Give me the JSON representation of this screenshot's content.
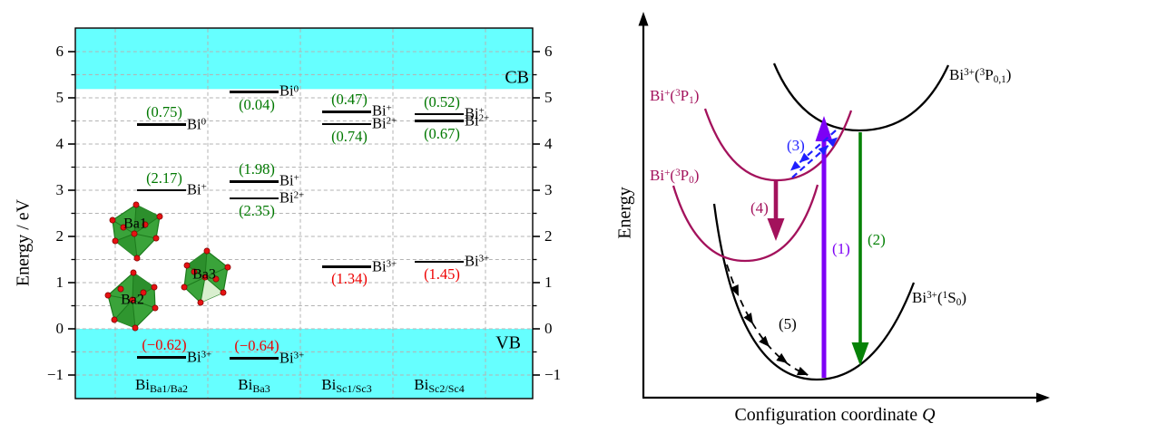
{
  "left_panel": {
    "y_axis_label": "Energy / eV",
    "tick_labels": [
      "6",
      "5",
      "4",
      "3",
      "2",
      "1",
      "0",
      "−1"
    ],
    "cb_label": "CB",
    "vb_label": "VB",
    "sites": [
      {
        "el": "Bi",
        "sub": "Ba1/Ba2"
      },
      {
        "el": "Bi",
        "sub": "Ba3"
      },
      {
        "el": "Bi",
        "sub": "Sc1/Sc3"
      },
      {
        "el": "Bi",
        "sub": "Sc2/Sc4"
      }
    ],
    "polyhedra": [
      "Ba1",
      "Ba2",
      "Ba3"
    ],
    "levels": [
      {
        "value": "(0.75)",
        "el": "Bi",
        "charge": "0"
      },
      {
        "value": "(2.17)",
        "el": "Bi",
        "charge": "+"
      },
      {
        "value": "(−0.62)",
        "el": "Bi",
        "charge": "3+"
      },
      {
        "value": "(0.04)",
        "el": "Bi",
        "charge": "0"
      },
      {
        "value": "(1.98)",
        "el": "Bi",
        "charge": "+"
      },
      {
        "value": "(2.35)",
        "el": "Bi",
        "charge": "2+"
      },
      {
        "value": "(−0.64)",
        "el": "Bi",
        "charge": "3+"
      },
      {
        "value": "(0.47)",
        "el": "Bi",
        "charge": "+"
      },
      {
        "value": "(0.74)",
        "el": "Bi",
        "charge": "2+"
      },
      {
        "value": "(1.34)",
        "el": "Bi",
        "charge": "3+"
      },
      {
        "value": "(0.52)",
        "el": "Bi",
        "charge": "+"
      },
      {
        "value": "(0.67)",
        "el": "Bi",
        "charge": "2+"
      },
      {
        "value": "(1.45)",
        "el": "Bi",
        "charge": "3+"
      }
    ]
  },
  "right_panel": {
    "y_axis_label": "Energy",
    "x_axis_label": "Configuration coordinate",
    "x_axis_symbol": "Q",
    "curve_labels": {
      "p1": {
        "el": "Bi",
        "charge": "+",
        "open": "(",
        "mult": "3",
        "term": "P",
        "sub": "1",
        "close": ")"
      },
      "p0": {
        "el": "Bi",
        "charge": "+",
        "open": "(",
        "mult": "3",
        "term": "P",
        "sub": "0",
        "close": ")"
      },
      "p01": {
        "el": "Bi",
        "charge": "3+",
        "open": "(",
        "mult": "3",
        "term": "P",
        "sub": "0,1",
        "close": ")"
      },
      "s0": {
        "el": "Bi",
        "charge": "3+",
        "open": "(",
        "mult": "1",
        "term": "S",
        "sub": "0",
        "close": ")"
      }
    },
    "arrow_labels": [
      "(1)",
      "(2)",
      "(3)",
      "(4)",
      "(5)"
    ]
  },
  "colors": {
    "band_cyan": "#66ffff",
    "value_green": "#007800",
    "value_red": "#ee0000",
    "curve_maroon": "#a3125c",
    "arrow_purple": "#7d00f5",
    "arrow_green": "#068207",
    "arrow_blue": "#1f1fff",
    "polyhedron_green": "#3aa33a",
    "vertex_red": "#e51212"
  },
  "chart_data": [
    {
      "type": "energy-level-diagram",
      "ylabel": "Energy / eV",
      "ylim": [
        -1.5,
        6.5
      ],
      "yticks": [
        -1,
        0,
        1,
        2,
        3,
        4,
        5,
        6
      ],
      "grid": true,
      "conduction_band_eV": [
        5.17,
        6.5
      ],
      "valence_band_eV": [
        -1.5,
        0.0
      ],
      "band_edge_labels": [
        "CB",
        "VB"
      ],
      "categories": [
        "Bi_Ba1/Ba2",
        "Bi_Ba3",
        "Bi_Sc1/Sc3",
        "Bi_Sc2/Sc4"
      ],
      "levels": [
        {
          "site": "Bi_Ba1/Ba2",
          "species": "Bi0",
          "energy_eV": 4.42,
          "annotation": "(0.75)",
          "annotation_color": "green"
        },
        {
          "site": "Bi_Ba1/Ba2",
          "species": "Bi+",
          "energy_eV": 3.0,
          "annotation": "(2.17)",
          "annotation_color": "green"
        },
        {
          "site": "Bi_Ba1/Ba2",
          "species": "Bi3+",
          "energy_eV": -0.62,
          "annotation": "(−0.62)",
          "annotation_color": "red"
        },
        {
          "site": "Bi_Ba3",
          "species": "Bi0",
          "energy_eV": 5.13,
          "annotation": "(0.04)",
          "annotation_color": "green"
        },
        {
          "site": "Bi_Ba3",
          "species": "Bi+",
          "energy_eV": 3.19,
          "annotation": "(1.98)",
          "annotation_color": "green"
        },
        {
          "site": "Bi_Ba3",
          "species": "Bi2+",
          "energy_eV": 2.82,
          "annotation": "(2.35)",
          "annotation_color": "green"
        },
        {
          "site": "Bi_Ba3",
          "species": "Bi3+",
          "energy_eV": -0.64,
          "annotation": "(−0.64)",
          "annotation_color": "red"
        },
        {
          "site": "Bi_Sc1/Sc3",
          "species": "Bi+",
          "energy_eV": 4.7,
          "annotation": "(0.47)",
          "annotation_color": "green"
        },
        {
          "site": "Bi_Sc1/Sc3",
          "species": "Bi2+",
          "energy_eV": 4.43,
          "annotation": "(0.74)",
          "annotation_color": "green"
        },
        {
          "site": "Bi_Sc1/Sc3",
          "species": "Bi3+",
          "energy_eV": 1.34,
          "annotation": "(1.34)",
          "annotation_color": "red"
        },
        {
          "site": "Bi_Sc2/Sc4",
          "species": "Bi+",
          "energy_eV": 4.65,
          "annotation": "(0.52)",
          "annotation_color": "green"
        },
        {
          "site": "Bi_Sc2/Sc4",
          "species": "Bi2+",
          "energy_eV": 4.5,
          "annotation": "(0.67)",
          "annotation_color": "green"
        },
        {
          "site": "Bi_Sc2/Sc4",
          "species": "Bi3+",
          "energy_eV": 1.45,
          "annotation": "(1.45)",
          "annotation_color": "red"
        }
      ],
      "inset_polyhedra": [
        "Ba1",
        "Ba2",
        "Ba3"
      ]
    },
    {
      "type": "configuration-coordinate-diagram",
      "xlabel": "Configuration coordinate Q",
      "ylabel": "Energy",
      "curves": [
        "Bi+(3P1)",
        "Bi+(3P0)",
        "Bi3+(3P0,1)",
        "Bi3+(1S0)"
      ],
      "transitions": [
        {
          "id": "(1)",
          "color": "purple",
          "style": "solid",
          "direction": "up",
          "from": "Bi3+(1S0)",
          "to": "Bi3+(3P0,1)"
        },
        {
          "id": "(2)",
          "color": "green",
          "style": "solid",
          "direction": "down",
          "from": "Bi3+(3P0,1)",
          "to": "Bi3+(1S0)"
        },
        {
          "id": "(3)",
          "color": "blue",
          "style": "dashed",
          "direction": "both",
          "from": "Bi3+(3P0,1)",
          "to": "Bi+(3P1)"
        },
        {
          "id": "(4)",
          "color": "maroon",
          "style": "solid",
          "direction": "down",
          "from": "Bi+(3P1)",
          "to": "Bi+(3P0)"
        },
        {
          "id": "(5)",
          "color": "black",
          "style": "dashed",
          "direction": "down",
          "from": "Bi3+(1S0)",
          "to": "Bi3+(1S0)"
        }
      ]
    }
  ]
}
